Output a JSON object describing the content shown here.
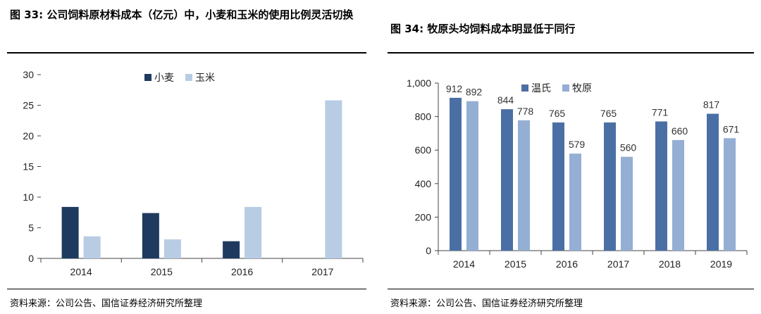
{
  "figures": [
    {
      "title_label": "图 33:",
      "title_text": "公司饲料原材料成本（亿元）中，小麦和玉米的使用比例灵活切换",
      "source": "资料来源：公司公告、国信证券经济研究所整理"
    },
    {
      "title_label": "图 34:",
      "title_text": "牧原头均饲料成本明显低于同行",
      "source": "资料来源：公司公告、国信证券经济研究所整理"
    }
  ],
  "chart_data": [
    {
      "type": "bar",
      "categories": [
        "2014",
        "2015",
        "2016",
        "2017"
      ],
      "series": [
        {
          "name": "小麦",
          "values": [
            8.4,
            7.4,
            2.8,
            0
          ],
          "color": "#1f3a5f"
        },
        {
          "name": "玉米",
          "values": [
            3.6,
            3.1,
            8.4,
            25.8
          ],
          "color": "#b8cce4"
        }
      ],
      "ylim": [
        0,
        30
      ],
      "yticks": [
        "0",
        "5",
        "10",
        "15",
        "20",
        "25",
        "30"
      ],
      "ytick_values": [
        0,
        5,
        10,
        15,
        20,
        25,
        30
      ],
      "legend_position": "top-center",
      "grid": false
    },
    {
      "type": "bar",
      "categories": [
        "2014",
        "2015",
        "2016",
        "2017",
        "2018",
        "2019"
      ],
      "series": [
        {
          "name": "温氏",
          "values": [
            912,
            844,
            765,
            765,
            771,
            817
          ],
          "labels": [
            "912",
            "844",
            "765",
            "765",
            "771",
            "817"
          ],
          "color": "#4a6fa5"
        },
        {
          "name": "牧原",
          "values": [
            892,
            778,
            579,
            560,
            660,
            671
          ],
          "labels": [
            "892",
            "778",
            "579",
            "560",
            "660",
            "671"
          ],
          "color": "#95aed4"
        }
      ],
      "ylim": [
        0,
        1000
      ],
      "yticks": [
        "0",
        "200",
        "400",
        "600",
        "800",
        "1,000"
      ],
      "ytick_values": [
        0,
        200,
        400,
        600,
        800,
        1000
      ],
      "legend_position": "top-left",
      "grid": false
    }
  ]
}
